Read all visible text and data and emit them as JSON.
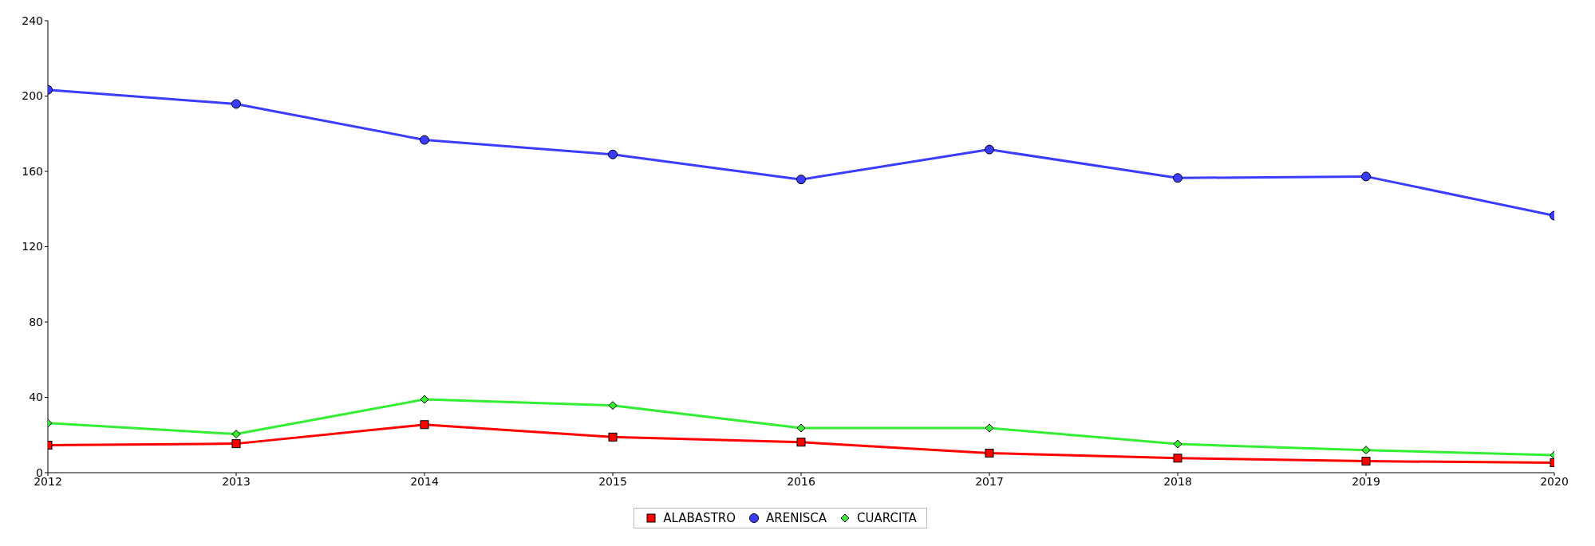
{
  "chart_data": {
    "type": "line",
    "categories": [
      "2012",
      "2013",
      "2014",
      "2015",
      "2016",
      "2017",
      "2018",
      "2019",
      "2020"
    ],
    "series": [
      {
        "name": "ALABASTRO",
        "color": "#ff0000",
        "marker": "square",
        "values": [
          14.6,
          15.4,
          25.5,
          18.9,
          16.2,
          10.4,
          7.7,
          6.1,
          5.3
        ]
      },
      {
        "name": "ARENISCA",
        "color": "#3c3cff",
        "marker": "circle",
        "values": [
          203.3,
          195.8,
          176.7,
          169,
          155.7,
          171.6,
          156.5,
          157.3,
          136.5
        ]
      },
      {
        "name": "CUARCITA",
        "color": "#33ee33",
        "marker": "diamond",
        "values": [
          26.3,
          20.5,
          38.9,
          35.7,
          23.7,
          23.7,
          15.2,
          12,
          9.3
        ]
      }
    ],
    "ylim": [
      0,
      240
    ],
    "yticks": [
      0,
      40,
      80,
      120,
      160,
      200,
      240
    ],
    "grid": false,
    "legend": "bottom",
    "line_style": "solid"
  }
}
